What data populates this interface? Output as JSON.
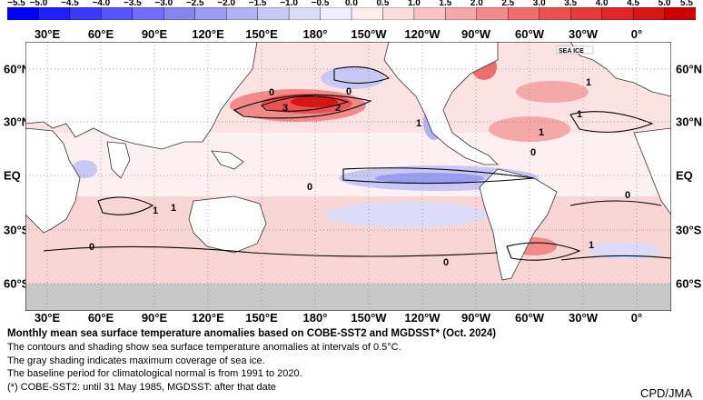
{
  "legend": {
    "ticks": [
      "−5.5",
      "−5.0",
      "−4.5",
      "−4.0",
      "−3.5",
      "−3.0",
      "−2.5",
      "−2.0",
      "−1.5",
      "−1.0",
      "−0.5",
      "0.0",
      "0.5",
      "1.0",
      "1.5",
      "2.0",
      "2.5",
      "3.0",
      "3.5",
      "4.0",
      "4.5",
      "5.0",
      "5.5"
    ],
    "colors": [
      "#0000ff",
      "#1f1fff",
      "#3a3aff",
      "#5555ff",
      "#6f6ff8",
      "#8585f0",
      "#9c9cf0",
      "#b2b2f3",
      "#c8c8f6",
      "#dcdcf9",
      "#eeeefc",
      "#fdeeee",
      "#fbdcdc",
      "#f8c4c4",
      "#f5a8a8",
      "#f28a8a",
      "#ee6e6e",
      "#ea5252",
      "#e53a3a",
      "#e02626",
      "#d81515",
      "#cc0000"
    ]
  },
  "map": {
    "lon_labels": [
      "30°E",
      "60°E",
      "90°E",
      "120°E",
      "150°E",
      "180°",
      "150°W",
      "120°W",
      "90°W",
      "60°W",
      "30°W",
      "0°"
    ],
    "lat_labels": [
      "60°N",
      "30°N",
      "EQ",
      "30°S",
      "60°S"
    ],
    "contour_labels": [
      "0",
      "0",
      "1",
      "2",
      "3",
      "1",
      "1",
      "1",
      "0",
      "0",
      "1",
      "0",
      "1",
      "0",
      "0",
      "1"
    ],
    "sea_ice_label": "SEA ICE",
    "colors": {
      "land": "#ffffff",
      "sea_ice": "#c8c8c8",
      "grid": "#888888"
    }
  },
  "caption": {
    "title": "Monthly mean sea surface temperature anomalies based on COBE-SST2 and MGDSST* (Oct. 2024)",
    "lines": [
      "The contours and shading show sea surface temperature anomalies at intervals of 0.5°C.",
      "The gray shading indicates maximum coverage of sea ice.",
      "The baseline period for climatological normal is from 1991 to 2020.",
      "(*) COBE-SST2: until 31 May 1985, MGDSST: after that date"
    ]
  },
  "credit": "CPD/JMA"
}
